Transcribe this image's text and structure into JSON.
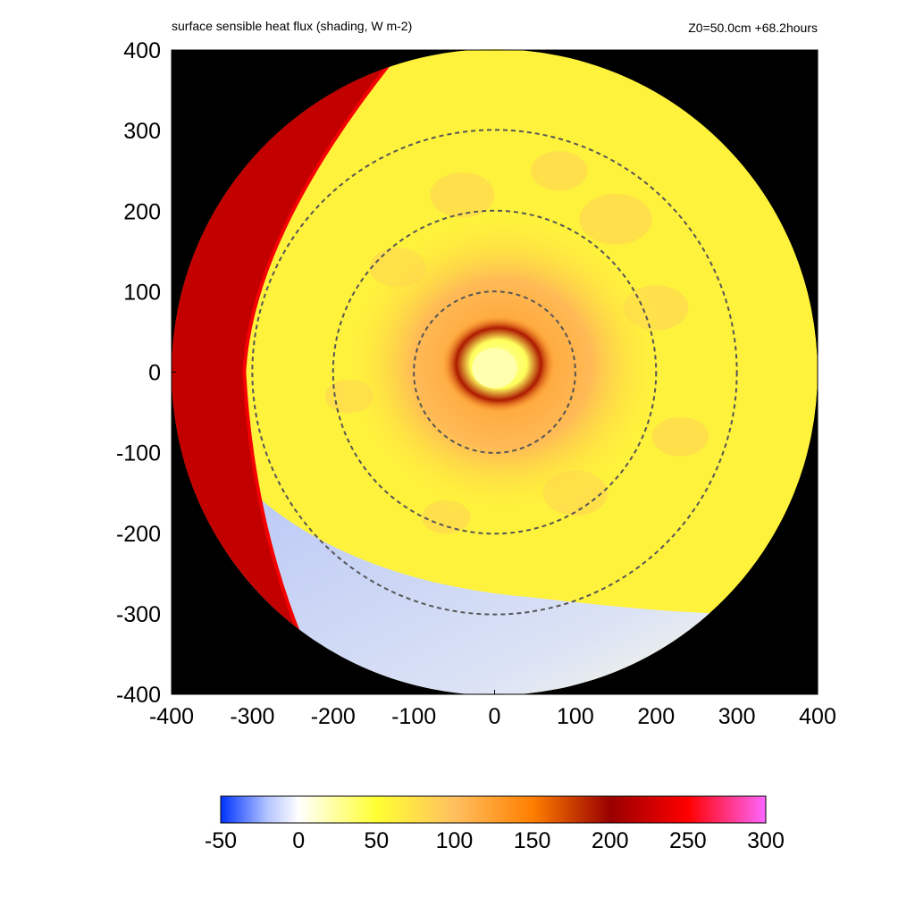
{
  "chart_data": {
    "type": "heatmap",
    "title": "surface sensible heat flux (shading, W m-2)",
    "annotation": "Z0=50.0cm  +68.2hours",
    "xlim": [
      -400,
      400
    ],
    "ylim": [
      -400,
      400
    ],
    "x_ticks": [
      "-400",
      "-300",
      "-200",
      "-100",
      "0",
      "100",
      "200",
      "300",
      "400"
    ],
    "y_ticks": [
      "400",
      "300",
      "200",
      "100",
      "0",
      "-100",
      "-200",
      "-300",
      "-400"
    ],
    "x_tick_values": [
      -400,
      -300,
      -200,
      -100,
      0,
      100,
      200,
      300,
      400
    ],
    "y_tick_values": [
      400,
      300,
      200,
      100,
      0,
      -100,
      -200,
      -300,
      -400
    ],
    "domain_radius": 400,
    "range_rings": [
      100,
      200,
      300
    ],
    "background_color": "#000000",
    "colorbar": {
      "min": -50,
      "max": 300,
      "tick_labels": [
        "-50",
        "0",
        "50",
        "100",
        "150",
        "200",
        "250",
        "300"
      ],
      "tick_values": [
        -50,
        0,
        50,
        100,
        150,
        200,
        250,
        300
      ],
      "stops": [
        {
          "value": -50,
          "color": "#0033ff"
        },
        {
          "value": -20,
          "color": "#b4c4ff"
        },
        {
          "value": 0,
          "color": "#ffffff"
        },
        {
          "value": 50,
          "color": "#ffff33"
        },
        {
          "value": 100,
          "color": "#ffc060"
        },
        {
          "value": 150,
          "color": "#ff7f00"
        },
        {
          "value": 200,
          "color": "#990000"
        },
        {
          "value": 250,
          "color": "#ff0000"
        },
        {
          "value": 300,
          "color": "#ff66ff"
        }
      ]
    },
    "features": {
      "eye_center": [
        0,
        0
      ],
      "eye_value": 20,
      "eyewall_value": 190,
      "inner_core_value": 130,
      "outer_field_value": 60,
      "cold_sector_value": -20,
      "land_strip_value": 220
    }
  }
}
